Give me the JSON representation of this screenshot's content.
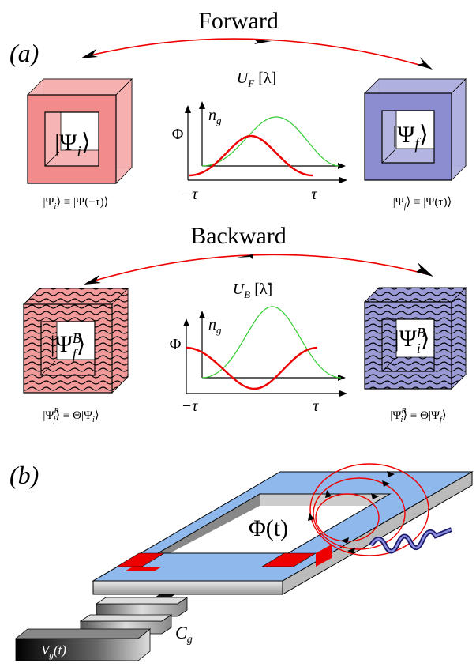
{
  "panel_a": {
    "label": "(a)",
    "forward": {
      "title": "Forward",
      "operator": [
        "U",
        "F",
        " [λ]"
      ],
      "ket_i": [
        "|Ψ",
        "i",
        "⟩"
      ],
      "ket_f": [
        "|Ψ",
        "f",
        "⟩"
      ],
      "axis_top": [
        "n",
        "g"
      ],
      "axis_left": "Φ",
      "t_start": "−τ",
      "t_end": "τ",
      "def_i": [
        "|Ψ",
        "i",
        "⟩ ≡ |Ψ(−τ)⟩"
      ],
      "def_f": [
        "|Ψ",
        "f",
        "⟩ ≡ |Ψ(τ)⟩"
      ]
    },
    "backward": {
      "title": "Backward",
      "operator": [
        "U",
        "B",
        " [λ̃]"
      ],
      "ket_f": [
        "|Ψ",
        "B",
        "f",
        "⟩"
      ],
      "ket_i": [
        "|Ψ",
        "B",
        "i",
        "⟩"
      ],
      "axis_top": [
        "n",
        "g"
      ],
      "axis_left": "Φ",
      "t_start": "−τ",
      "t_end": "τ",
      "def_f": [
        "|Ψ",
        "B",
        "f",
        "⟩ ≡ Θ|Ψ",
        "i",
        "⟩"
      ],
      "def_i": [
        "|Ψ",
        "B",
        "i",
        "⟩ ≡ Θ|Ψ",
        "f",
        "⟩"
      ]
    }
  },
  "panel_b": {
    "label": "(b)",
    "flux": "Φ(t)",
    "capacitance": [
      "C",
      "g"
    ],
    "voltage": [
      "V",
      "g",
      "(t)"
    ]
  }
}
